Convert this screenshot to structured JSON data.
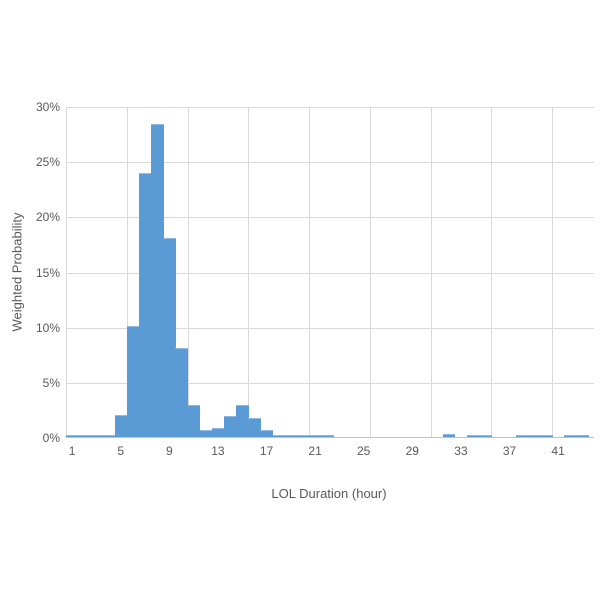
{
  "chart_data": {
    "type": "bar",
    "subtype": "histogram",
    "title": "",
    "xlabel": "LOL Duration (hour)",
    "ylabel": "Weighted Probability",
    "x": [
      1,
      2,
      3,
      4,
      5,
      6,
      7,
      8,
      9,
      10,
      11,
      12,
      13,
      14,
      15,
      16,
      17,
      18,
      19,
      20,
      21,
      22,
      23,
      24,
      25,
      26,
      27,
      28,
      29,
      30,
      31,
      32,
      33,
      34,
      35,
      36,
      37,
      38,
      39,
      40,
      41,
      42,
      43
    ],
    "values": [
      0.15,
      0.15,
      0.15,
      0.15,
      2.0,
      10.1,
      23.9,
      28.4,
      18.0,
      8.1,
      2.9,
      0.6,
      0.8,
      1.9,
      2.9,
      1.75,
      0.65,
      0.2,
      0.2,
      0.2,
      0.2,
      0.2,
      0,
      0,
      0,
      0,
      0,
      0,
      0,
      0,
      0,
      0.25,
      0,
      0.2,
      0.2,
      0,
      0,
      0.2,
      0.2,
      0.2,
      0,
      0.2,
      0.2
    ],
    "x_tick_labels": [
      "1",
      "5",
      "9",
      "13",
      "17",
      "21",
      "25",
      "29",
      "33",
      "37",
      "41"
    ],
    "x_tick_positions": [
      1,
      5,
      9,
      13,
      17,
      21,
      25,
      29,
      33,
      37,
      41
    ],
    "y_tick_labels": [
      "0%",
      "5%",
      "10%",
      "15%",
      "20%",
      "25%",
      "30%"
    ],
    "y_tick_values": [
      0,
      5,
      10,
      15,
      20,
      25,
      30
    ],
    "ylim": [
      0,
      30
    ],
    "x_gridline_bin_boundaries": [
      0,
      5,
      10,
      15,
      20,
      25,
      30,
      35,
      40
    ],
    "grid": true,
    "legend": "none",
    "colors": {
      "bar_fill": "#5B9BD5",
      "bar_top_edge": "#8FB9E4",
      "gridline": "#D9D9D9",
      "axis_line": "#C3C3C3",
      "text": "#595959",
      "background": "#FFFFFF"
    }
  }
}
